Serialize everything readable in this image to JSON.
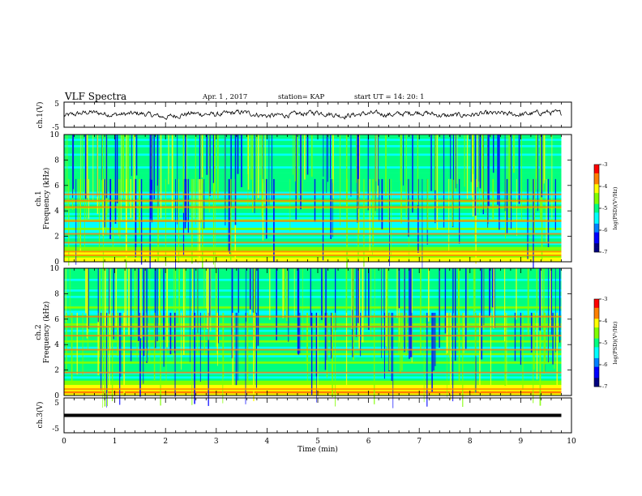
{
  "header": {
    "title": "VLF Spectra",
    "date": "Apr. 1 , 2017",
    "station": "station= KAP",
    "start": "start UT =   14: 20: 1"
  },
  "colors": {
    "line": "#000000",
    "colormap": [
      "#000080",
      "#0000ff",
      "#0080ff",
      "#00ffff",
      "#00ff80",
      "#80ff00",
      "#ffff00",
      "#ff8000",
      "#ff0000",
      "#ffffff"
    ]
  },
  "chart_data": [
    {
      "type": "line",
      "panel": "ch1_waveform",
      "ylabel": "ch.1(V)",
      "ylim": [
        -5,
        5
      ],
      "y_ticks": [
        "5",
        "-5"
      ],
      "xlim": [
        0,
        10
      ],
      "note_series": "dense noisy waveform near 0 V from 0 to about 9.8 min",
      "x": [
        0,
        0.5,
        1,
        1.5,
        2,
        2.5,
        3,
        3.5,
        4,
        4.5,
        5,
        5.5,
        6,
        6.5,
        7,
        7.5,
        8,
        8.5,
        9,
        9.5,
        9.8
      ],
      "y": [
        -0.5,
        1,
        0,
        0.5,
        -1,
        0.5,
        0,
        1,
        -0.5,
        0,
        1,
        -0.5,
        0.5,
        0,
        1,
        -0.5,
        0,
        0.5,
        0,
        1,
        0.5
      ]
    },
    {
      "type": "heatmap",
      "panel": "ch1_spectrogram",
      "ylabel": "ch.1\nFrequency (kHz)",
      "ylim": [
        0,
        10
      ],
      "y_ticks": [
        "0",
        "2",
        "4",
        "6",
        "8",
        "10"
      ],
      "xlim": [
        0,
        10
      ],
      "data_xmax": 9.8,
      "colorbar": {
        "label": "log(PSD)(V²/Hz)",
        "range": [
          -7,
          -3
        ],
        "ticks": [
          "-3",
          "-4",
          "-5",
          "-6",
          "-7"
        ]
      },
      "bands_khz": [
        0.5,
        0.8,
        1.5,
        2.2,
        3.2,
        4.3,
        4.8,
        5.3
      ]
    },
    {
      "type": "heatmap",
      "panel": "ch2_spectrogram",
      "ylabel": "ch.2\nFrequency (kHz)",
      "ylim": [
        0,
        10
      ],
      "y_ticks": [
        "0",
        "2",
        "4",
        "6",
        "8",
        "10"
      ],
      "xlim": [
        0,
        10
      ],
      "data_xmax": 9.8,
      "colorbar": {
        "label": "log(PSD)(V²/Hz)",
        "range": [
          -7,
          -3
        ],
        "ticks": [
          "-3",
          "-4",
          "-5",
          "-6",
          "-7"
        ]
      },
      "bands_khz": [
        0.5,
        1.8,
        3.6,
        4.7,
        5.4,
        6.2
      ]
    },
    {
      "type": "line",
      "panel": "ch3_waveform",
      "ylabel": "ch.3(V)",
      "ylim": [
        -5,
        5
      ],
      "y_ticks": [
        "5",
        "-5"
      ],
      "xlim": [
        0,
        10
      ],
      "x": [
        0,
        9.8
      ],
      "y": [
        0,
        0
      ]
    }
  ],
  "xaxis": {
    "label": "Time  (min)",
    "ticks": [
      "0",
      "1",
      "2",
      "3",
      "4",
      "5",
      "6",
      "7",
      "8",
      "9",
      "10"
    ]
  }
}
